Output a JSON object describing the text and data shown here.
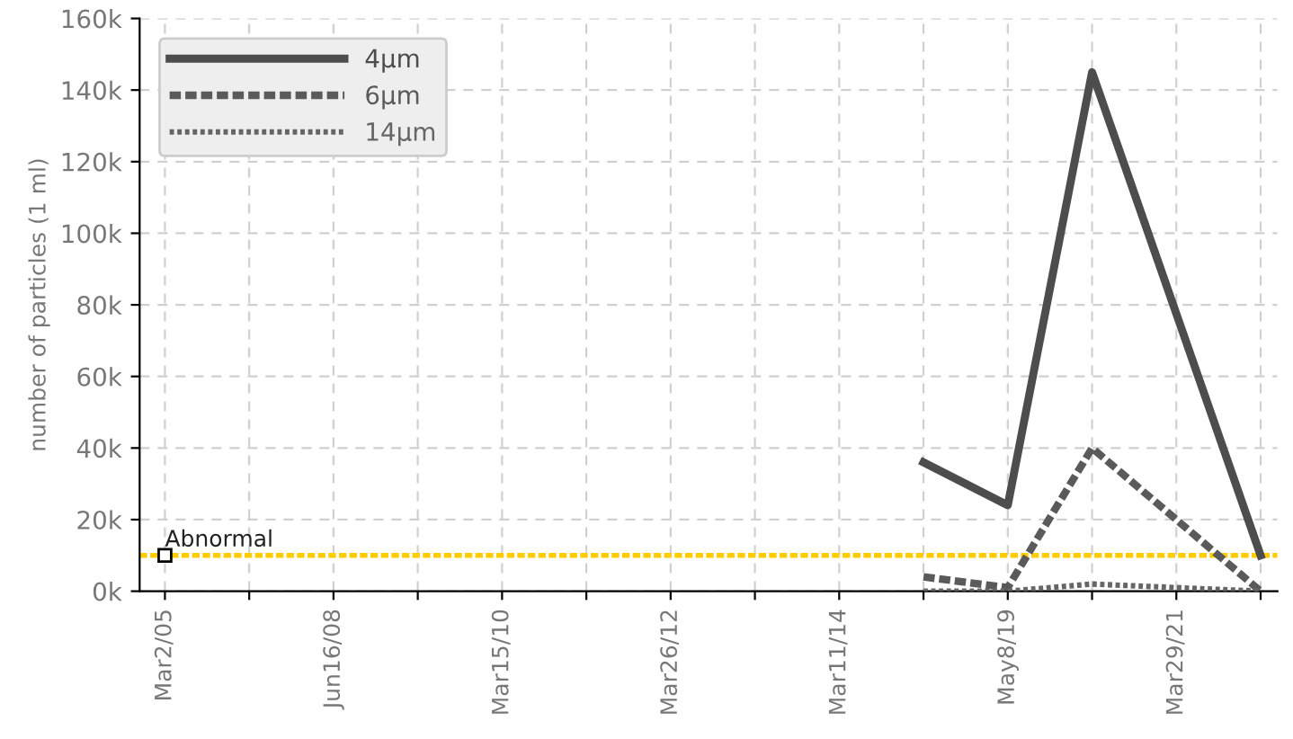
{
  "chart_data": {
    "type": "line",
    "ylabel": "number of particles (1 ml)",
    "categories": [
      "Mar2/05",
      null,
      "Jun16/08",
      null,
      "Mar15/10",
      null,
      "Mar26/12",
      null,
      "Mar11/14",
      null,
      "May8/19",
      null,
      "Mar29/21",
      null
    ],
    "series": [
      {
        "name": "4μm",
        "color": "#4d4d4d",
        "line_style": "solid",
        "values": [
          null,
          null,
          null,
          null,
          null,
          null,
          null,
          null,
          null,
          36000,
          24000,
          145000,
          null,
          10000
        ]
      },
      {
        "name": "6μm",
        "color": "#5a5a5a",
        "line_style": "dashed",
        "values": [
          null,
          null,
          null,
          null,
          null,
          null,
          null,
          null,
          null,
          4000,
          1000,
          40000,
          null,
          0
        ]
      },
      {
        "name": "14μm",
        "color": "#666666",
        "line_style": "dotted",
        "values": [
          null,
          null,
          null,
          null,
          null,
          null,
          null,
          null,
          null,
          0,
          0,
          2000,
          null,
          0
        ]
      }
    ],
    "ylim": [
      0,
      160000
    ],
    "yticks": [
      {
        "value": 0,
        "label": "0k"
      },
      {
        "value": 20000,
        "label": "20k"
      },
      {
        "value": 40000,
        "label": "40k"
      },
      {
        "value": 60000,
        "label": "60k"
      },
      {
        "value": 80000,
        "label": "80k"
      },
      {
        "value": 100000,
        "label": "100k"
      },
      {
        "value": 120000,
        "label": "120k"
      },
      {
        "value": 140000,
        "label": "140k"
      },
      {
        "value": 160000,
        "label": "160k"
      }
    ],
    "ref_lines": [
      {
        "axis": "y",
        "value": 10000,
        "label": "Abnormal",
        "color": "#ffcc00",
        "line_style": "dashed"
      }
    ],
    "grid": true,
    "legend": "top left",
    "marker": "none"
  }
}
